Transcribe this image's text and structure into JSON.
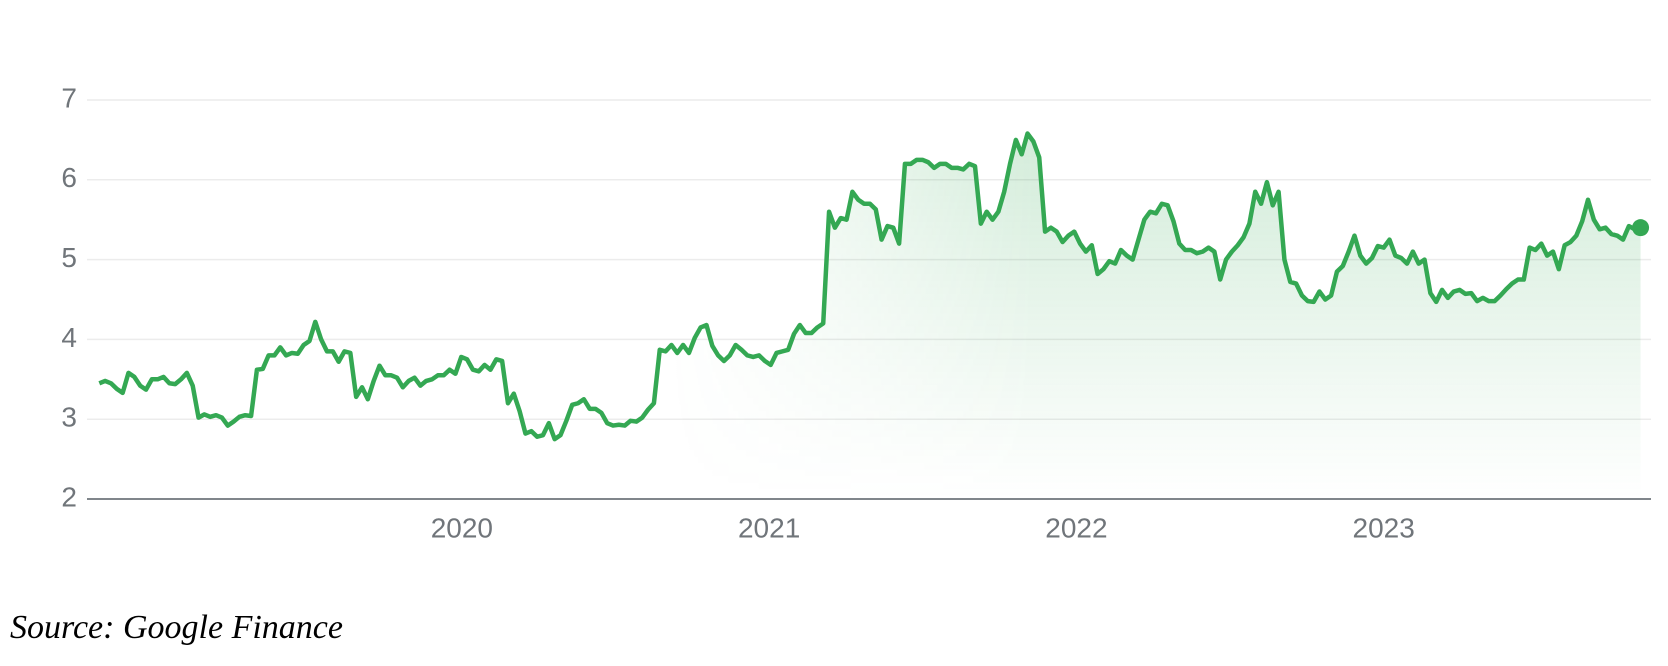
{
  "chart_data": {
    "type": "line",
    "source": "Source: Google Finance",
    "color": "#34a853",
    "grid": true,
    "xlim": [
      2018.78,
      2023.87
    ],
    "xticks": [
      2020,
      2021,
      2022,
      2023
    ],
    "ylim": [
      2,
      7
    ],
    "yticks": [
      2,
      3,
      4,
      5,
      6,
      7
    ],
    "x": [
      2018.82,
      2018.839,
      2018.858,
      2018.877,
      2018.896,
      2018.915,
      2018.934,
      2018.953,
      2018.972,
      2018.991,
      2019.01,
      2019.029,
      2019.048,
      2019.067,
      2019.086,
      2019.105,
      2019.124,
      2019.143,
      2019.162,
      2019.181,
      2019.2,
      2019.219,
      2019.238,
      2019.257,
      2019.276,
      2019.295,
      2019.314,
      2019.333,
      2019.352,
      2019.371,
      2019.39,
      2019.409,
      2019.428,
      2019.447,
      2019.466,
      2019.485,
      2019.504,
      2019.523,
      2019.542,
      2019.561,
      2019.58,
      2019.599,
      2019.618,
      2019.637,
      2019.656,
      2019.675,
      2019.694,
      2019.713,
      2019.732,
      2019.751,
      2019.77,
      2019.789,
      2019.808,
      2019.827,
      2019.846,
      2019.865,
      2019.884,
      2019.903,
      2019.922,
      2019.941,
      2019.96,
      2019.979,
      2019.998,
      2020.017,
      2020.036,
      2020.055,
      2020.074,
      2020.093,
      2020.112,
      2020.131,
      2020.15,
      2020.169,
      2020.188,
      2020.207,
      2020.226,
      2020.245,
      2020.264,
      2020.283,
      2020.302,
      2020.321,
      2020.34,
      2020.359,
      2020.378,
      2020.397,
      2020.416,
      2020.435,
      2020.454,
      2020.473,
      2020.492,
      2020.511,
      2020.53,
      2020.549,
      2020.568,
      2020.587,
      2020.606,
      2020.625,
      2020.644,
      2020.663,
      2020.682,
      2020.701,
      2020.72,
      2020.739,
      2020.758,
      2020.777,
      2020.796,
      2020.815,
      2020.834,
      2020.853,
      2020.872,
      2020.891,
      2020.91,
      2020.929,
      2020.948,
      2020.967,
      2020.986,
      2021.005,
      2021.024,
      2021.043,
      2021.062,
      2021.081,
      2021.1,
      2021.119,
      2021.138,
      2021.157,
      2021.176,
      2021.195,
      2021.214,
      2021.233,
      2021.252,
      2021.271,
      2021.29,
      2021.309,
      2021.328,
      2021.347,
      2021.366,
      2021.385,
      2021.404,
      2021.423,
      2021.442,
      2021.461,
      2021.48,
      2021.499,
      2021.518,
      2021.537,
      2021.556,
      2021.575,
      2021.594,
      2021.613,
      2021.632,
      2021.651,
      2021.67,
      2021.689,
      2021.708,
      2021.727,
      2021.746,
      2021.765,
      2021.784,
      2021.803,
      2021.822,
      2021.841,
      2021.86,
      2021.879,
      2021.898,
      2021.917,
      2021.936,
      2021.955,
      2021.974,
      2021.993,
      2022.012,
      2022.031,
      2022.05,
      2022.069,
      2022.088,
      2022.107,
      2022.126,
      2022.145,
      2022.164,
      2022.183,
      2022.202,
      2022.221,
      2022.24,
      2022.259,
      2022.278,
      2022.297,
      2022.316,
      2022.335,
      2022.354,
      2022.373,
      2022.392,
      2022.411,
      2022.43,
      2022.449,
      2022.468,
      2022.487,
      2022.506,
      2022.525,
      2022.544,
      2022.563,
      2022.582,
      2022.601,
      2022.62,
      2022.639,
      2022.658,
      2022.677,
      2022.696,
      2022.715,
      2022.734,
      2022.753,
      2022.772,
      2022.791,
      2022.81,
      2022.829,
      2022.848,
      2022.867,
      2022.886,
      2022.905,
      2022.924,
      2022.943,
      2022.962,
      2022.981,
      2023.0,
      2023.019,
      2023.038,
      2023.057,
      2023.076,
      2023.095,
      2023.114,
      2023.133,
      2023.152,
      2023.171,
      2023.19,
      2023.209,
      2023.228,
      2023.247,
      2023.266,
      2023.285,
      2023.304,
      2023.323,
      2023.342,
      2023.361,
      2023.38,
      2023.399,
      2023.418,
      2023.437,
      2023.456,
      2023.475,
      2023.494,
      2023.513,
      2023.532,
      2023.551,
      2023.57,
      2023.589,
      2023.608,
      2023.627,
      2023.646,
      2023.665,
      2023.684,
      2023.703,
      2023.722,
      2023.741,
      2023.76,
      2023.779,
      2023.798,
      2023.817,
      2023.836
    ],
    "values": [
      3.45,
      3.48,
      3.45,
      3.38,
      3.33,
      3.58,
      3.53,
      3.42,
      3.37,
      3.5,
      3.5,
      3.53,
      3.45,
      3.44,
      3.5,
      3.58,
      3.42,
      3.02,
      3.06,
      3.03,
      3.05,
      3.02,
      2.92,
      2.97,
      3.03,
      3.05,
      3.04,
      3.62,
      3.63,
      3.8,
      3.8,
      3.9,
      3.8,
      3.83,
      3.82,
      3.93,
      3.98,
      4.22,
      4.0,
      3.85,
      3.85,
      3.72,
      3.85,
      3.83,
      3.28,
      3.4,
      3.25,
      3.48,
      3.67,
      3.55,
      3.55,
      3.52,
      3.4,
      3.48,
      3.52,
      3.42,
      3.48,
      3.5,
      3.55,
      3.55,
      3.62,
      3.57,
      3.78,
      3.75,
      3.62,
      3.6,
      3.68,
      3.62,
      3.75,
      3.73,
      3.2,
      3.32,
      3.1,
      2.82,
      2.85,
      2.78,
      2.8,
      2.95,
      2.75,
      2.8,
      2.98,
      3.18,
      3.2,
      3.25,
      3.13,
      3.13,
      3.08,
      2.95,
      2.92,
      2.93,
      2.92,
      2.98,
      2.97,
      3.02,
      3.12,
      3.2,
      3.87,
      3.85,
      3.93,
      3.83,
      3.93,
      3.83,
      4.02,
      4.15,
      4.18,
      3.92,
      3.8,
      3.73,
      3.8,
      3.93,
      3.87,
      3.8,
      3.78,
      3.8,
      3.73,
      3.68,
      3.83,
      3.85,
      3.87,
      4.07,
      4.18,
      4.08,
      4.08,
      4.15,
      4.2,
      5.6,
      5.4,
      5.52,
      5.5,
      5.85,
      5.75,
      5.7,
      5.7,
      5.63,
      5.25,
      5.42,
      5.4,
      5.2,
      6.2,
      6.2,
      6.25,
      6.25,
      6.22,
      6.15,
      6.2,
      6.2,
      6.15,
      6.15,
      6.13,
      6.2,
      6.17,
      5.45,
      5.6,
      5.5,
      5.6,
      5.85,
      6.2,
      6.5,
      6.32,
      6.58,
      6.48,
      6.28,
      5.35,
      5.4,
      5.35,
      5.22,
      5.3,
      5.35,
      5.2,
      5.1,
      5.18,
      4.82,
      4.88,
      4.98,
      4.95,
      5.12,
      5.05,
      5.0,
      5.25,
      5.5,
      5.6,
      5.58,
      5.7,
      5.68,
      5.48,
      5.2,
      5.12,
      5.12,
      5.08,
      5.1,
      5.15,
      5.1,
      4.75,
      5.0,
      5.1,
      5.18,
      5.28,
      5.45,
      5.85,
      5.7,
      5.97,
      5.68,
      5.85,
      5.0,
      4.72,
      4.7,
      4.55,
      4.48,
      4.47,
      4.6,
      4.5,
      4.55,
      4.85,
      4.92,
      5.1,
      5.3,
      5.05,
      4.95,
      5.02,
      5.17,
      5.15,
      5.25,
      5.05,
      5.02,
      4.95,
      5.1,
      4.95,
      5.0,
      4.58,
      4.47,
      4.62,
      4.52,
      4.6,
      4.62,
      4.57,
      4.58,
      4.48,
      4.52,
      4.48,
      4.48,
      4.55,
      4.63,
      4.7,
      4.75,
      4.75,
      5.15,
      5.12,
      5.2,
      5.05,
      5.1,
      4.88,
      5.18,
      5.22,
      5.3,
      5.48,
      5.75,
      5.5,
      5.38,
      5.4,
      5.32,
      5.3,
      5.25,
      5.42,
      5.38,
      5.4
    ]
  }
}
